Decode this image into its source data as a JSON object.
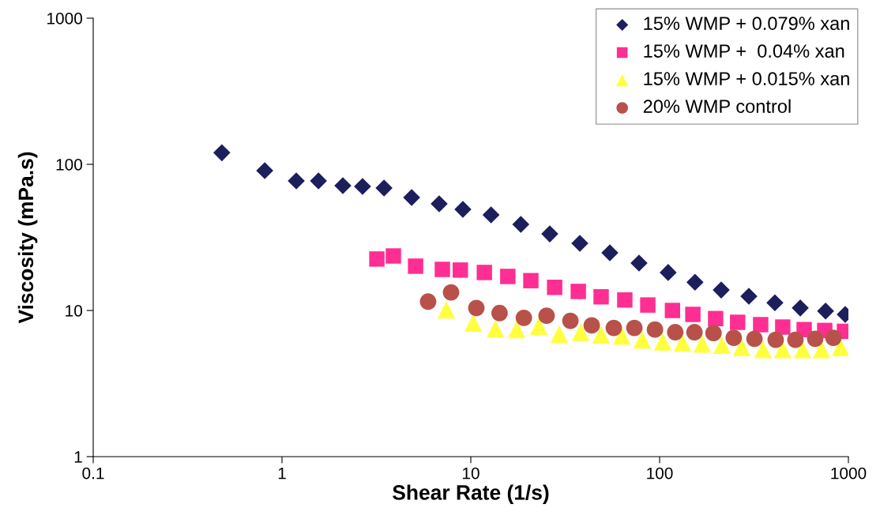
{
  "chart_data": {
    "type": "scatter",
    "xlabel": "Shear Rate (1/s)",
    "ylabel": "Viscosity (mPa.s)",
    "log": "xy",
    "xlim": [
      0.1,
      1000
    ],
    "xticks": [
      0.1,
      1,
      10,
      100,
      1000
    ],
    "ylim": [
      1,
      1000
    ],
    "yticks": [
      1,
      10,
      100,
      1000
    ],
    "grid": false,
    "legend": "top right",
    "series": [
      {
        "name": "15% WMP + 0.079% xan",
        "color": "#1c1f5c",
        "marker": "diamond",
        "x": [
          0.48,
          0.81,
          1.19,
          1.56,
          2.1,
          2.67,
          3.47,
          4.86,
          6.8,
          9.08,
          12.8,
          18.4,
          26.2,
          37.8,
          54.5,
          77.8,
          111,
          154,
          212,
          297,
          408,
          556,
          757,
          962
        ],
        "values": [
          120,
          90.5,
          77,
          77,
          71.5,
          70.6,
          68.8,
          59.3,
          53.7,
          49.2,
          45.1,
          38.8,
          33.4,
          28.8,
          24.8,
          21.1,
          18.2,
          15.6,
          13.8,
          12.5,
          11.3,
          10.4,
          9.9,
          9.4
        ]
      },
      {
        "name": "15% WMP +  0.04% xan",
        "color": "#ff2e93",
        "marker": "square",
        "x": [
          3.18,
          3.89,
          5.1,
          7.07,
          8.8,
          11.8,
          15.7,
          20.8,
          27.8,
          37.1,
          49,
          65.4,
          86.6,
          117,
          150,
          198,
          259,
          343,
          449,
          583,
          749,
          953
        ],
        "values": [
          22.5,
          23.6,
          20.1,
          19.1,
          18.9,
          18.2,
          17.1,
          16.0,
          14.4,
          13.5,
          12.4,
          11.8,
          10.9,
          10,
          9.4,
          8.8,
          8.3,
          8.0,
          7.7,
          7.4,
          7.3,
          7.2
        ]
      },
      {
        "name": "15% WMP + 0.015% xan",
        "color": "#ffff40",
        "marker": "triangle",
        "x": [
          7.42,
          10.3,
          13.5,
          17.5,
          22.9,
          29.4,
          38.2,
          49,
          63,
          80.9,
          104,
          132,
          168,
          214,
          272,
          353,
          449,
          572,
          721,
          908
        ],
        "values": [
          10.1,
          8.2,
          7.5,
          7.4,
          7.8,
          6.9,
          7.1,
          6.8,
          6.7,
          6.3,
          6.1,
          6.0,
          5.9,
          5.8,
          5.6,
          5.4,
          5.4,
          5.4,
          5.4,
          5.6
        ]
      },
      {
        "name": "20% WMP control",
        "color": "#b8514a",
        "marker": "circle",
        "x": [
          5.94,
          7.86,
          10.7,
          14.2,
          19.1,
          25.2,
          33.7,
          43.7,
          57.2,
          73.5,
          94.5,
          121,
          153,
          193,
          247,
          318,
          412,
          524,
          667,
          833
        ],
        "values": [
          11.5,
          13.3,
          10.4,
          9.6,
          8.9,
          9.2,
          8.5,
          7.9,
          7.6,
          7.6,
          7.4,
          7.1,
          7.1,
          7.0,
          6.5,
          6.4,
          6.3,
          6.3,
          6.4,
          6.5
        ]
      }
    ]
  }
}
